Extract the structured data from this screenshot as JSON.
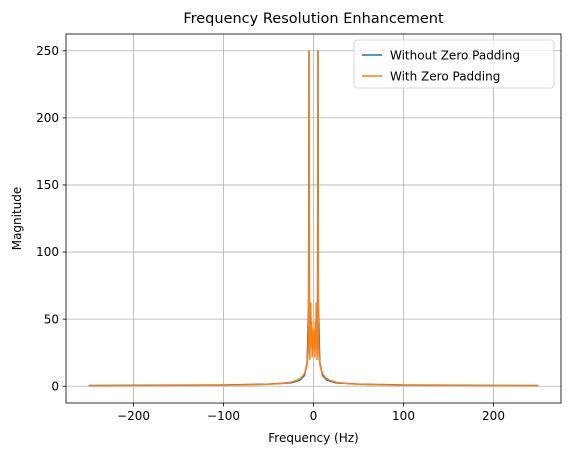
{
  "chart_data": {
    "type": "line",
    "title": "Frequency Resolution Enhancement",
    "xlabel": "Frequency (Hz)",
    "ylabel": "Magnitude",
    "xlim": [
      -275,
      275
    ],
    "ylim": [
      -12.5,
      262.5
    ],
    "xticks": [
      -200,
      -100,
      0,
      100,
      200
    ],
    "yticks": [
      0,
      50,
      100,
      150,
      200,
      250
    ],
    "xtick_labels": [
      "−200",
      "−100",
      "0",
      "100",
      "200"
    ],
    "ytick_labels": [
      "0",
      "50",
      "100",
      "150",
      "200",
      "250"
    ],
    "grid": true,
    "legend_position": "top-right",
    "series": [
      {
        "name": "Without Zero Padding",
        "color": "#1f77b4",
        "x": [
          -250,
          -100,
          -50,
          -25,
          -15,
          -10,
          -7,
          -5.5,
          -5,
          -4.5,
          -3,
          -1,
          0,
          1,
          3,
          4.5,
          5,
          5.5,
          7,
          10,
          15,
          25,
          50,
          100,
          250
        ],
        "y": [
          0.5,
          0.9,
          1.6,
          2.5,
          4.5,
          8,
          18,
          60,
          250,
          60,
          30,
          40,
          35,
          40,
          30,
          60,
          250,
          60,
          18,
          8,
          4.5,
          2.5,
          1.6,
          0.9,
          0.5
        ]
      },
      {
        "name": "With Zero Padding",
        "color": "#ff7f0e",
        "x": [
          -250,
          -150,
          -100,
          -60,
          -40,
          -25,
          -18,
          -14,
          -11,
          -9,
          -7.5,
          -6.5,
          -6,
          -5.5,
          -5.2,
          -5,
          -4.8,
          -4.5,
          -4,
          -3.5,
          -3,
          -2.5,
          -2,
          -1.5,
          -1,
          -0.5,
          0,
          0.5,
          1,
          1.5,
          2,
          2.5,
          3,
          3.5,
          4,
          4.5,
          4.8,
          5,
          5.2,
          5.5,
          6,
          6.5,
          7.5,
          9,
          11,
          14,
          18,
          25,
          40,
          60,
          100,
          150,
          250
        ],
        "y": [
          0.3,
          0.5,
          0.7,
          1.2,
          1.8,
          3,
          4.5,
          6,
          8.5,
          11,
          15,
          20,
          25,
          40,
          90,
          250,
          90,
          45,
          20,
          35,
          62,
          30,
          48,
          22,
          40,
          28,
          42,
          28,
          40,
          22,
          48,
          30,
          62,
          35,
          20,
          45,
          90,
          250,
          90,
          40,
          25,
          20,
          15,
          11,
          8.5,
          6,
          4.5,
          3,
          1.8,
          1.2,
          0.7,
          0.5,
          0.3
        ]
      }
    ]
  }
}
